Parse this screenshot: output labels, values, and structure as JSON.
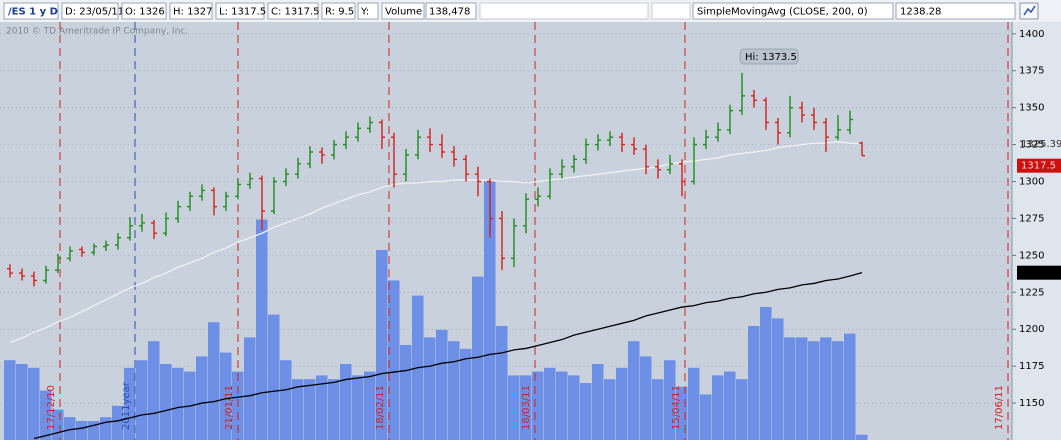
{
  "header": {
    "symbol": "/ES 1 y D",
    "fields": [
      "D: 23/05/11",
      "O: 1326",
      "H: 1327",
      "L: 1317.5",
      "C: 1317.5",
      "R: 9.5",
      "Y:",
      "Volume",
      "138,478"
    ]
  },
  "chart_data": {
    "type": "ohlc",
    "watermark": "2010 © TD Ameritrade IP Company, Inc.",
    "annotation": "Hi: 1373.5",
    "up_color": "#1f8a1f",
    "down_color": "#d42020",
    "volume_color": "#6d8fe6",
    "grid": true,
    "ylim": [
      1125,
      1408
    ],
    "yticks": [
      1150,
      1175,
      1200,
      1225,
      1250,
      1275,
      1300,
      1325,
      1350,
      1375,
      1400
    ],
    "volume_lim": [
      0,
      11000000
    ],
    "open": [
      1241,
      1238,
      1236,
      1233,
      1240,
      1248,
      1254,
      1252,
      1256,
      1257,
      1262,
      1270,
      1272,
      1265,
      1275,
      1283,
      1290,
      1294,
      1283,
      1290,
      1298,
      1302,
      1280,
      1300,
      1305,
      1312,
      1320,
      1318,
      1325,
      1330,
      1336,
      1340,
      1330,
      1305,
      1318,
      1330,
      1325,
      1320,
      1315,
      1305,
      1300,
      1275,
      1248,
      1270,
      1288,
      1290,
      1305,
      1310,
      1315,
      1325,
      1328,
      1330,
      1325,
      1322,
      1310,
      1308,
      1312,
      1300,
      1325,
      1330,
      1335,
      1348,
      1358,
      1355,
      1340,
      1333,
      1350,
      1345,
      1340,
      1330,
      1335,
      1326
    ],
    "high": [
      1244,
      1241,
      1239,
      1243,
      1251,
      1256,
      1256,
      1258,
      1260,
      1265,
      1276,
      1278,
      1274,
      1279,
      1287,
      1293,
      1298,
      1296,
      1293,
      1302,
      1306,
      1304,
      1303,
      1309,
      1316,
      1324,
      1323,
      1328,
      1334,
      1340,
      1344,
      1342,
      1333,
      1322,
      1335,
      1336,
      1332,
      1324,
      1318,
      1310,
      1302,
      1280,
      1275,
      1292,
      1296,
      1309,
      1315,
      1318,
      1329,
      1332,
      1334,
      1333,
      1330,
      1325,
      1315,
      1318,
      1315,
      1330,
      1335,
      1340,
      1352,
      1373.5,
      1362,
      1357,
      1343,
      1358,
      1354,
      1350,
      1343,
      1345,
      1348,
      1327
    ],
    "low": [
      1235,
      1233,
      1229,
      1231,
      1238,
      1246,
      1249,
      1250,
      1253,
      1254,
      1260,
      1266,
      1261,
      1263,
      1272,
      1280,
      1287,
      1277,
      1280,
      1288,
      1295,
      1267,
      1278,
      1297,
      1302,
      1309,
      1312,
      1315,
      1322,
      1327,
      1333,
      1322,
      1296,
      1300,
      1315,
      1320,
      1316,
      1310,
      1300,
      1290,
      1262,
      1240,
      1242,
      1265,
      1283,
      1288,
      1302,
      1306,
      1312,
      1321,
      1324,
      1320,
      1318,
      1305,
      1302,
      1305,
      1290,
      1298,
      1322,
      1327,
      1332,
      1345,
      1350,
      1335,
      1325,
      1330,
      1340,
      1335,
      1320,
      1328,
      1332,
      1317.5
    ],
    "close": [
      1238,
      1236,
      1233,
      1240,
      1248,
      1253,
      1252,
      1256,
      1257,
      1262,
      1270,
      1272,
      1265,
      1275,
      1283,
      1290,
      1294,
      1283,
      1290,
      1298,
      1302,
      1280,
      1300,
      1305,
      1312,
      1320,
      1318,
      1325,
      1330,
      1336,
      1340,
      1330,
      1305,
      1318,
      1330,
      1325,
      1320,
      1315,
      1305,
      1300,
      1275,
      1248,
      1270,
      1288,
      1290,
      1305,
      1310,
      1315,
      1325,
      1328,
      1330,
      1325,
      1322,
      1310,
      1308,
      1312,
      1300,
      1325,
      1330,
      1335,
      1348,
      1358,
      1355,
      1340,
      1333,
      1350,
      1345,
      1340,
      1330,
      1335,
      1342,
      1317.5
    ],
    "volume": [
      2100000,
      2000000,
      1900000,
      1300000,
      800000,
      600000,
      500000,
      500000,
      600000,
      900000,
      1900000,
      2100000,
      2600000,
      2000000,
      1900000,
      1800000,
      2200000,
      3100000,
      2300000,
      1800000,
      2700000,
      5800000,
      3300000,
      2100000,
      1600000,
      1600000,
      1700000,
      1600000,
      2000000,
      1700000,
      1800000,
      5000000,
      4200000,
      2500000,
      3800000,
      2700000,
      2900000,
      2600000,
      2400000,
      4300000,
      6800000,
      3000000,
      1700000,
      1700000,
      1800000,
      1900000,
      1800000,
      1700000,
      1500000,
      2000000,
      1600000,
      1900000,
      2600000,
      2200000,
      1600000,
      2100000,
      1400000,
      1900000,
      1200000,
      1700000,
      1800000,
      1600000,
      3000000,
      3500000,
      3200000,
      2700000,
      2700000,
      2600000,
      2700000,
      2600000,
      2800000,
      138478
    ],
    "overlays": [
      {
        "color": "#f2f2f2",
        "values": [
          1191,
          1194,
          1198,
          1201,
          1205,
          1208,
          1212,
          1216,
          1220,
          1224,
          1228,
          1231,
          1235,
          1238,
          1242,
          1245,
          1248,
          1252,
          1255,
          1259,
          1262,
          1265,
          1269,
          1272,
          1275,
          1278,
          1282,
          1285,
          1288,
          1291,
          1293,
          1296,
          1298,
          1299,
          1299,
          1300,
          1300,
          1301,
          1301,
          1301,
          1301,
          1300,
          1300,
          1299,
          1300,
          1301,
          1302,
          1303,
          1304,
          1305,
          1306,
          1307,
          1308,
          1309,
          1310,
          1312,
          1313,
          1314,
          1315,
          1316,
          1318,
          1319,
          1320,
          1321,
          1323,
          1324,
          1325,
          1326,
          1326,
          1327,
          1326,
          1325.39
        ]
      },
      {
        "name": "SimpleMovingAvg (CLOSE, 200, 0)",
        "color": "#000000",
        "values": [
          null,
          null,
          1126,
          1128,
          1130,
          1132,
          1133,
          1135,
          1137,
          1138,
          1140,
          1142,
          1143,
          1145,
          1147,
          1148,
          1150,
          1151,
          1153,
          1154,
          1155,
          1157,
          1158,
          1159,
          1161,
          1162,
          1163,
          1164,
          1166,
          1167,
          1168,
          1170,
          1171,
          1172,
          1174,
          1175,
          1177,
          1178,
          1180,
          1181,
          1183,
          1184,
          1186,
          1187,
          1189,
          1191,
          1193,
          1196,
          1198,
          1200,
          1202,
          1204,
          1206,
          1209,
          1211,
          1213,
          1215,
          1216,
          1218,
          1219,
          1221,
          1222,
          1224,
          1225,
          1227,
          1228,
          1230,
          1231,
          1233,
          1234,
          1236,
          1238.28
        ]
      }
    ],
    "date_markers": [
      {
        "label": "17/12/10",
        "color": "#d42020"
      },
      {
        "label": "2011year",
        "color": "#2a4fa8"
      },
      {
        "label": "21/01/11",
        "color": "#d42020"
      },
      {
        "label": "18/02/11",
        "color": "#d42020"
      },
      {
        "label": "18/03/11",
        "color": "#d42020"
      },
      {
        "label": "15/04/11",
        "color": "#d42020"
      },
      {
        "label": "17/06/11",
        "color": "#d42020"
      }
    ]
  }
}
